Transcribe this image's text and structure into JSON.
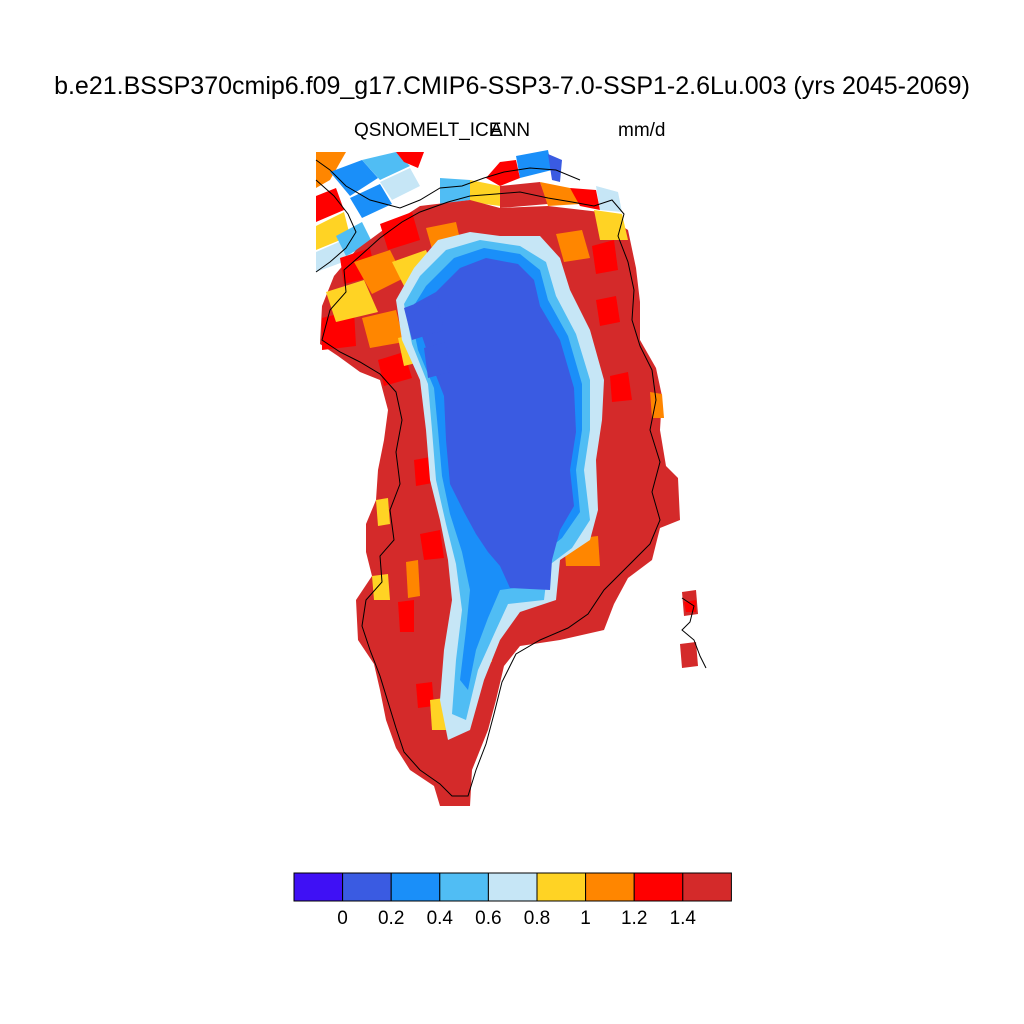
{
  "title": "b.e21.BSSP370cmip6.f09_g17.CMIP6-SSP3-7.0-SSP1-2.6Lu.003 (yrs 2045-2069)",
  "variable": "QSNOMELT_ICE",
  "season": "ANN",
  "units": "mm/d",
  "colorbar": {
    "colors": [
      "#3f10f5",
      "#3a5be2",
      "#1a8ff9",
      "#50bdf4",
      "#c6e6f6",
      "#ffd324",
      "#ff8600",
      "#ff0000",
      "#d42a2a"
    ],
    "labels": [
      "0",
      "0.2",
      "0.4",
      "0.6",
      "0.8",
      "1",
      "1.2",
      "1.4"
    ]
  },
  "colors": {
    "background": "#ffffff",
    "coastline": "#000000"
  }
}
